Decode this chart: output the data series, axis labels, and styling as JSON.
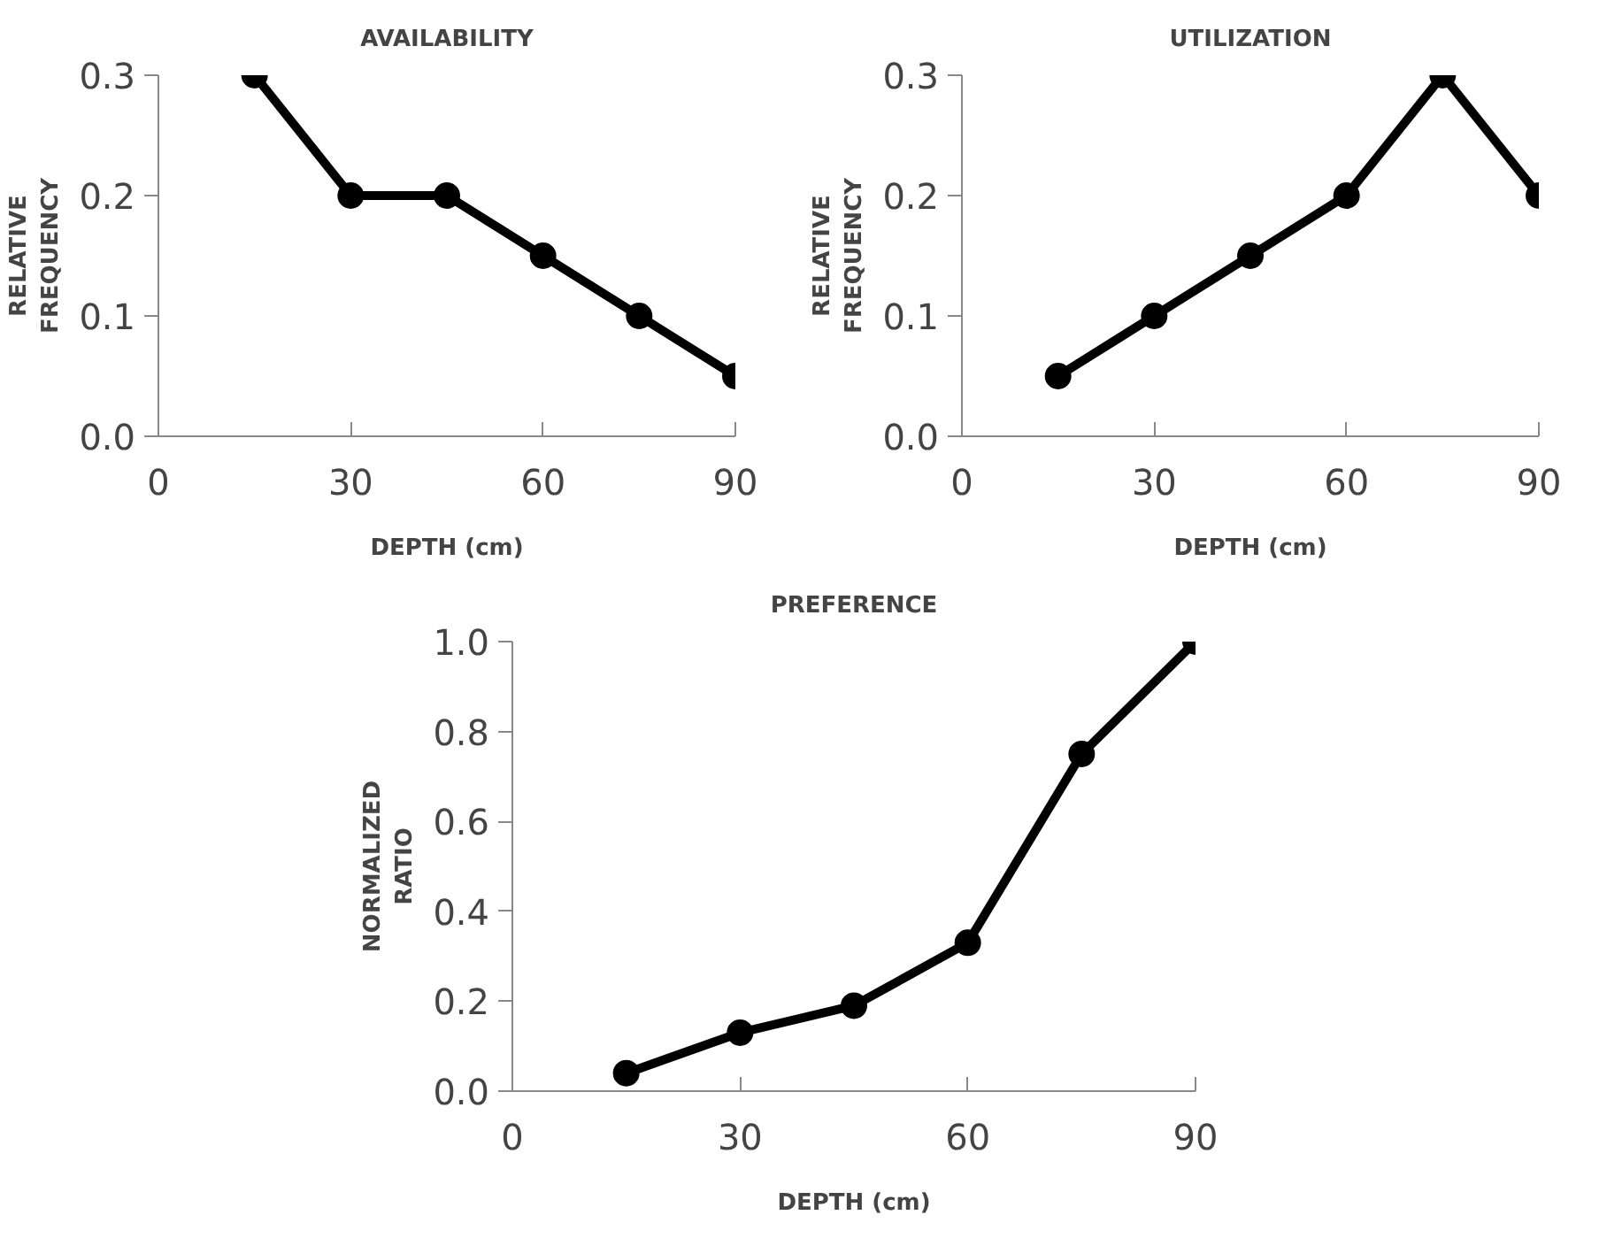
{
  "chart_data": [
    {
      "type": "line",
      "title": "AVAILABILITY",
      "xlabel": "DEPTH (cm)",
      "ylabel": "RELATIVE\nFREQUENCY",
      "x": [
        15,
        30,
        45,
        60,
        75,
        90
      ],
      "series": [
        {
          "color": "#000000",
          "values": [
            0.3,
            0.2,
            0.2,
            0.15,
            0.1,
            0.05
          ]
        }
      ],
      "xlim": [
        0,
        90
      ],
      "xticks": [
        0,
        30,
        60,
        90
      ],
      "ylim": [
        0,
        0.3
      ],
      "yticks": [
        {
          "value": 0,
          "label": "0.0"
        },
        {
          "value": 0.1,
          "label": "0.1"
        },
        {
          "value": 0.2,
          "label": "0.2"
        },
        {
          "value": 0.3,
          "label": "0.3"
        }
      ],
      "marker": "circle",
      "line_style": "solid",
      "grid": false
    },
    {
      "type": "line",
      "title": "UTILIZATION",
      "xlabel": "DEPTH (cm)",
      "ylabel": "RELATIVE\nFREQUENCY",
      "x": [
        15,
        30,
        45,
        60,
        75,
        90
      ],
      "series": [
        {
          "color": "#000000",
          "values": [
            0.05,
            0.1,
            0.15,
            0.2,
            0.3,
            0.2
          ]
        }
      ],
      "xlim": [
        0,
        90
      ],
      "xticks": [
        0,
        30,
        60,
        90
      ],
      "ylim": [
        0,
        0.3
      ],
      "yticks": [
        {
          "value": 0,
          "label": "0.0"
        },
        {
          "value": 0.1,
          "label": "0.1"
        },
        {
          "value": 0.2,
          "label": "0.2"
        },
        {
          "value": 0.3,
          "label": "0.3"
        }
      ],
      "marker": "circle",
      "line_style": "solid",
      "grid": false
    },
    {
      "type": "line",
      "title": "PREFERENCE",
      "xlabel": "DEPTH (cm)",
      "ylabel": "NORMALIZED\nRATIO",
      "x": [
        15,
        30,
        45,
        60,
        75,
        90
      ],
      "series": [
        {
          "color": "#000000",
          "values": [
            0.04,
            0.13,
            0.19,
            0.33,
            0.75,
            1.0
          ]
        }
      ],
      "xlim": [
        0,
        90
      ],
      "xticks": [
        0,
        30,
        60,
        90
      ],
      "ylim": [
        0,
        1.0
      ],
      "yticks": [
        {
          "value": 0,
          "label": "0.0"
        },
        {
          "value": 0.2,
          "label": "0.2"
        },
        {
          "value": 0.4,
          "label": "0.4"
        },
        {
          "value": 0.6,
          "label": "0.6"
        },
        {
          "value": 0.8,
          "label": "0.8"
        },
        {
          "value": 1.0,
          "label": "1.0"
        }
      ],
      "marker": "circle",
      "line_style": "solid",
      "grid": false
    }
  ]
}
